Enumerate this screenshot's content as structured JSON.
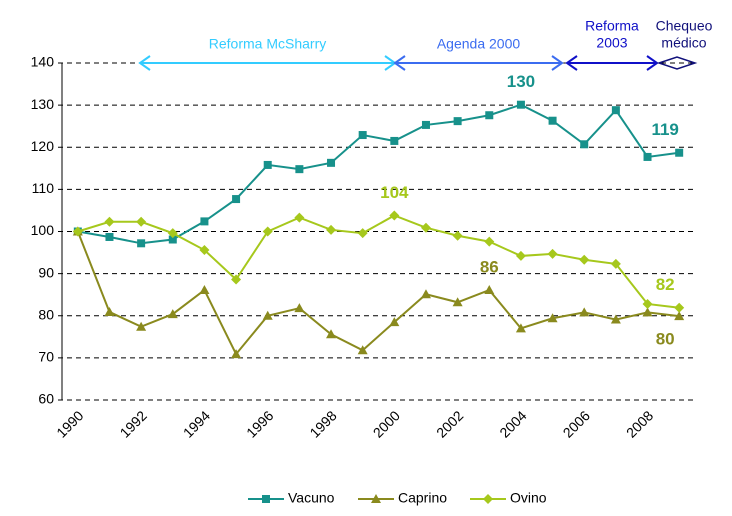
{
  "chart_data": {
    "type": "line",
    "categories": [
      "1990",
      null,
      "1992",
      null,
      "1994",
      null,
      "1996",
      null,
      "1998",
      null,
      "2000",
      null,
      "2002",
      null,
      "2004",
      null,
      "2006",
      null,
      "2008",
      null
    ],
    "series": [
      {
        "name": "Vacuno",
        "color": "#17918b",
        "marker": "square",
        "values": [
          100,
          98.7,
          97.2,
          98.1,
          102.4,
          107.7,
          115.8,
          114.8,
          116.3,
          122.9,
          121.5,
          125.3,
          126.2,
          127.6,
          130.1,
          126.3,
          120.7,
          128.8,
          117.7,
          118.7
        ],
        "value_labels": [
          null,
          null,
          null,
          null,
          null,
          null,
          null,
          null,
          null,
          null,
          null,
          null,
          null,
          null,
          "130",
          null,
          null,
          null,
          null,
          "119"
        ]
      },
      {
        "name": "Caprino",
        "color": "#8a8a1e",
        "marker": "triangle",
        "values": [
          100,
          80.9,
          77.4,
          80.4,
          86.1,
          70.9,
          80.0,
          81.8,
          75.6,
          71.8,
          78.5,
          85.1,
          83.2,
          86.1,
          77.0,
          79.4,
          80.8,
          79.1,
          80.8,
          79.9
        ],
        "value_labels": [
          null,
          null,
          null,
          null,
          null,
          null,
          null,
          null,
          null,
          null,
          null,
          null,
          null,
          "86",
          null,
          null,
          null,
          null,
          null,
          "80"
        ]
      },
      {
        "name": "Ovino",
        "color": "#a6c81c",
        "marker": "diamond",
        "values": [
          100,
          102.3,
          102.3,
          99.6,
          95.6,
          88.6,
          100.0,
          103.3,
          100.4,
          99.6,
          103.8,
          100.9,
          99.0,
          97.6,
          94.2,
          94.7,
          93.3,
          92.3,
          82.8,
          81.9
        ],
        "value_labels": [
          null,
          null,
          null,
          null,
          null,
          null,
          null,
          null,
          null,
          null,
          "104",
          null,
          null,
          null,
          null,
          null,
          null,
          null,
          null,
          "82"
        ]
      }
    ],
    "ylim": [
      60,
      140
    ],
    "yticks": [
      60,
      70,
      80,
      90,
      100,
      110,
      120,
      130,
      140
    ],
    "grid": true,
    "legend": "bottom",
    "periods": [
      {
        "lines": [
          "Reforma McSharry"
        ],
        "color": "#33ccff"
      },
      {
        "lines": [
          "Agenda 2000"
        ],
        "color": "#3b6cf0"
      },
      {
        "lines": [
          "Reforma",
          "2003"
        ],
        "color": "#1010c8"
      },
      {
        "lines": [
          "Chequeo",
          "médico"
        ],
        "color": "#10107a"
      }
    ]
  }
}
